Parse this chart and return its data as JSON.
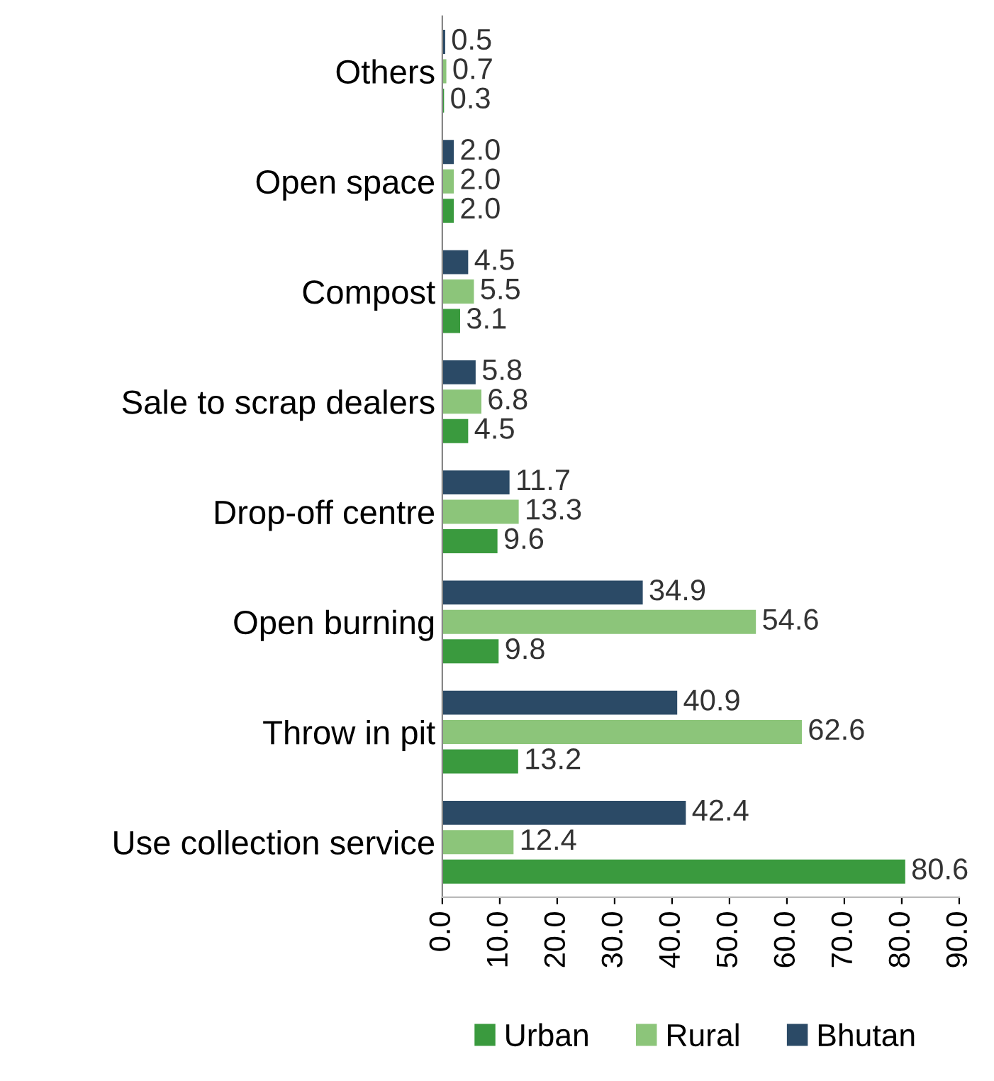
{
  "chart_data": {
    "type": "bar",
    "orientation": "horizontal",
    "categories": [
      "Others",
      "Open space",
      "Compost",
      "Sale to scrap dealers",
      "Drop-off centre",
      "Open burning",
      "Throw in pit",
      "Use collection service"
    ],
    "series": [
      {
        "name": "Urban",
        "color": "#3a9a3e",
        "values": [
          0.3,
          2.0,
          3.1,
          4.5,
          9.6,
          9.8,
          13.2,
          80.6
        ],
        "value_labels": [
          "0.3",
          "2.0",
          "3.1",
          "4.5",
          "9.6",
          "9.8",
          "13.2",
          "80.6"
        ]
      },
      {
        "name": "Rural",
        "color": "#8cc57a",
        "values": [
          0.7,
          2.0,
          5.5,
          6.8,
          13.3,
          54.6,
          62.6,
          12.4
        ],
        "value_labels": [
          "0.7",
          "2.0",
          "5.5",
          "6.8",
          "13.3",
          "54.6",
          "62.6",
          "12.4"
        ]
      },
      {
        "name": "Bhutan",
        "color": "#2b4a66",
        "values": [
          0.5,
          2.0,
          4.5,
          5.8,
          11.7,
          34.9,
          40.9,
          42.4
        ],
        "value_labels": [
          "0.5",
          "2.0",
          "4.5",
          "5.8",
          "11.7",
          "34.9",
          "40.9",
          "42.4"
        ]
      }
    ],
    "xlim": [
      0,
      90
    ],
    "xticks": [
      {
        "value": 0,
        "label": "0.0"
      },
      {
        "value": 10,
        "label": "10.0"
      },
      {
        "value": 20,
        "label": "20.0"
      },
      {
        "value": 30,
        "label": "30.0"
      },
      {
        "value": 40,
        "label": "40.0"
      },
      {
        "value": 50,
        "label": "50.0"
      },
      {
        "value": 60,
        "label": "60.0"
      },
      {
        "value": 70,
        "label": "70.0"
      },
      {
        "value": 80,
        "label": "80.0"
      },
      {
        "value": 90,
        "label": "90.0"
      }
    ],
    "grid": false,
    "legend": "bottom"
  }
}
